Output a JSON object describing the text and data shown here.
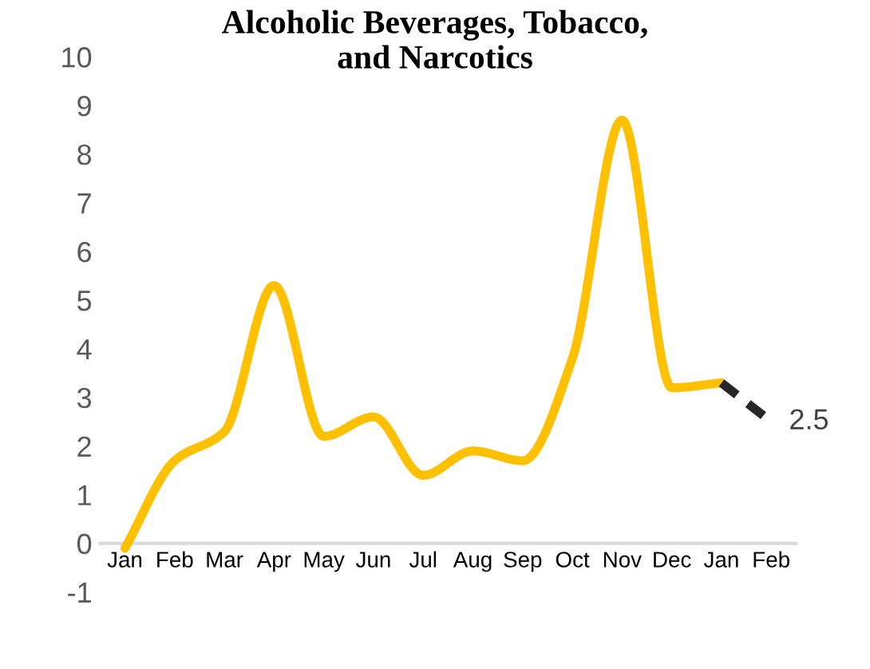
{
  "chart_data": {
    "type": "line",
    "title": "Alcoholic Beverages, Tobacco,\nand Narcotics",
    "categories": [
      "Jan",
      "Feb",
      "Mar",
      "Apr",
      "May",
      "Jun",
      "Jul",
      "Aug",
      "Sep",
      "Oct",
      "Nov",
      "Dec",
      "Jan",
      "Feb"
    ],
    "series": [
      {
        "color": "#ffc000",
        "line_style": "solid",
        "values": [
          -0.1,
          1.7,
          2.3,
          5.3,
          2.2,
          2.6,
          1.4,
          1.9,
          1.7,
          3.8,
          8.7,
          3.2,
          3.3,
          null
        ]
      },
      {
        "color": "#262626",
        "line_style": "dashed",
        "values": [
          null,
          null,
          null,
          null,
          null,
          null,
          null,
          null,
          null,
          null,
          null,
          null,
          3.3,
          2.5
        ],
        "value_labels": [
          null,
          null,
          null,
          null,
          null,
          null,
          null,
          null,
          null,
          null,
          null,
          null,
          null,
          "2.5"
        ]
      }
    ],
    "ylim": [
      -1,
      10
    ],
    "yticks": [
      -1,
      0,
      1,
      2,
      3,
      4,
      5,
      6,
      7,
      8,
      9,
      10
    ],
    "grid": false,
    "legend": false,
    "marker": "none"
  }
}
